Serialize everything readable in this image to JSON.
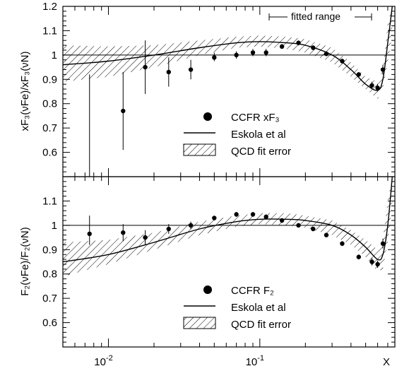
{
  "chart_data": [
    {
      "type": "scatter",
      "panel": "top",
      "ylabel": "xF₃(νFe)/xF₃(νN)",
      "xscale": "log",
      "xlim": [
        0.005,
        0.78
      ],
      "ylim": [
        0.5,
        1.2
      ],
      "yticks": [
        "0.6",
        "0.7",
        "0.8",
        "0.9",
        "1",
        "1.1",
        "1.2"
      ],
      "reference_line": 1,
      "fitted_range_label": "fitted range",
      "points": [
        {
          "x": 0.0075,
          "y": 0.48,
          "elo": 0.4,
          "ehi": 0.92
        },
        {
          "x": 0.0125,
          "y": 0.77,
          "elo": 0.61,
          "ehi": 0.93
        },
        {
          "x": 0.0175,
          "y": 0.95,
          "elo": 0.84,
          "ehi": 1.06
        },
        {
          "x": 0.025,
          "y": 0.93,
          "elo": 0.87,
          "ehi": 0.99
        },
        {
          "x": 0.035,
          "y": 0.94,
          "elo": 0.9,
          "ehi": 0.98
        },
        {
          "x": 0.05,
          "y": 0.99,
          "elo": 0.975,
          "ehi": 1.01
        },
        {
          "x": 0.07,
          "y": 1.0,
          "elo": 0.985,
          "ehi": 1.015
        },
        {
          "x": 0.09,
          "y": 1.01,
          "elo": 0.995,
          "ehi": 1.025
        },
        {
          "x": 0.11,
          "y": 1.01,
          "elo": 0.995,
          "ehi": 1.025
        },
        {
          "x": 0.14,
          "y": 1.035,
          "elo": 1.025,
          "ehi": 1.045
        },
        {
          "x": 0.18,
          "y": 1.05,
          "elo": 1.04,
          "ehi": 1.06
        },
        {
          "x": 0.225,
          "y": 1.03,
          "elo": 1.02,
          "ehi": 1.04
        },
        {
          "x": 0.275,
          "y": 1.005,
          "elo": 0.995,
          "ehi": 1.015
        },
        {
          "x": 0.35,
          "y": 0.975,
          "elo": 0.965,
          "ehi": 0.985
        },
        {
          "x": 0.45,
          "y": 0.92,
          "elo": 0.91,
          "ehi": 0.93
        },
        {
          "x": 0.55,
          "y": 0.875,
          "elo": 0.86,
          "ehi": 0.89
        },
        {
          "x": 0.6,
          "y": 0.865,
          "elo": 0.85,
          "ehi": 0.88
        },
        {
          "x": 0.65,
          "y": 0.94,
          "elo": 0.92,
          "ehi": 0.96
        }
      ],
      "curve": {
        "x": [
          0.005,
          0.01,
          0.02,
          0.04,
          0.07,
          0.1,
          0.15,
          0.2,
          0.3,
          0.4,
          0.5,
          0.6,
          0.65,
          0.7,
          0.75
        ],
        "y": [
          0.96,
          0.975,
          1.0,
          1.03,
          1.05,
          1.055,
          1.05,
          1.04,
          1.0,
          0.94,
          0.88,
          0.855,
          0.9,
          1.05,
          1.2
        ]
      },
      "band": {
        "x": [
          0.005,
          0.01,
          0.02,
          0.04,
          0.07,
          0.1,
          0.15,
          0.2,
          0.3,
          0.4,
          0.5,
          0.6,
          0.65,
          0.7,
          0.75
        ],
        "lo": [
          0.89,
          0.91,
          0.95,
          1.0,
          1.03,
          1.035,
          1.025,
          1.01,
          0.97,
          0.91,
          0.86,
          0.82,
          0.86,
          0.97,
          1.08
        ],
        "hi": [
          1.04,
          1.035,
          1.04,
          1.06,
          1.075,
          1.08,
          1.075,
          1.065,
          1.03,
          0.97,
          0.91,
          0.89,
          0.94,
          1.13,
          1.2
        ]
      },
      "legend": {
        "placement": "bottom-right",
        "items": [
          "CCFR  xF₃",
          "Eskola et al",
          "QCD fit error"
        ]
      }
    },
    {
      "type": "scatter",
      "panel": "bottom",
      "ylabel": "F₂(νFe)/F₂(νN)",
      "xlabel": "X",
      "xscale": "log",
      "xlim": [
        0.005,
        0.78
      ],
      "ylim": [
        0.5,
        1.2
      ],
      "yticks": [
        "0.6",
        "0.7",
        "0.8",
        "0.9",
        "1",
        "1.1"
      ],
      "xticks": [
        {
          "value": 0.01,
          "base": "10",
          "exp": "-2"
        },
        {
          "value": 0.1,
          "base": "10",
          "exp": "-1"
        }
      ],
      "reference_line": 1,
      "points": [
        {
          "x": 0.0075,
          "y": 0.965,
          "elo": 0.92,
          "ehi": 1.04
        },
        {
          "x": 0.0125,
          "y": 0.97,
          "elo": 0.935,
          "ehi": 1.005
        },
        {
          "x": 0.0175,
          "y": 0.95,
          "elo": 0.92,
          "ehi": 0.98
        },
        {
          "x": 0.025,
          "y": 0.985,
          "elo": 0.965,
          "ehi": 1.005
        },
        {
          "x": 0.035,
          "y": 1.0,
          "elo": 0.985,
          "ehi": 1.015
        },
        {
          "x": 0.05,
          "y": 1.03,
          "elo": 1.02,
          "ehi": 1.04
        },
        {
          "x": 0.07,
          "y": 1.045,
          "elo": 1.035,
          "ehi": 1.055
        },
        {
          "x": 0.09,
          "y": 1.045,
          "elo": 1.035,
          "ehi": 1.055
        },
        {
          "x": 0.11,
          "y": 1.035,
          "elo": 1.025,
          "ehi": 1.045
        },
        {
          "x": 0.14,
          "y": 1.02,
          "elo": 1.01,
          "ehi": 1.03
        },
        {
          "x": 0.18,
          "y": 1.0,
          "elo": 0.992,
          "ehi": 1.008
        },
        {
          "x": 0.225,
          "y": 0.985,
          "elo": 0.977,
          "ehi": 0.993
        },
        {
          "x": 0.275,
          "y": 0.96,
          "elo": 0.952,
          "ehi": 0.968
        },
        {
          "x": 0.35,
          "y": 0.925,
          "elo": 0.915,
          "ehi": 0.935
        },
        {
          "x": 0.45,
          "y": 0.87,
          "elo": 0.86,
          "ehi": 0.88
        },
        {
          "x": 0.55,
          "y": 0.85,
          "elo": 0.835,
          "ehi": 0.865
        },
        {
          "x": 0.6,
          "y": 0.84,
          "elo": 0.825,
          "ehi": 0.855
        },
        {
          "x": 0.65,
          "y": 0.925,
          "elo": 0.905,
          "ehi": 0.945
        }
      ],
      "curve": {
        "x": [
          0.005,
          0.01,
          0.02,
          0.04,
          0.07,
          0.1,
          0.15,
          0.2,
          0.3,
          0.4,
          0.5,
          0.6,
          0.65,
          0.7,
          0.75
        ],
        "y": [
          0.85,
          0.88,
          0.93,
          0.985,
          1.015,
          1.025,
          1.025,
          1.02,
          1.0,
          0.96,
          0.91,
          0.86,
          0.88,
          1.0,
          1.2
        ]
      },
      "band": {
        "x": [
          0.005,
          0.01,
          0.02,
          0.04,
          0.07,
          0.1,
          0.15,
          0.2,
          0.3,
          0.4,
          0.5,
          0.6,
          0.65,
          0.7,
          0.75
        ],
        "lo": [
          0.79,
          0.84,
          0.9,
          0.96,
          0.995,
          1.005,
          1.0,
          0.99,
          0.96,
          0.92,
          0.87,
          0.81,
          0.82,
          0.93,
          1.08
        ],
        "hi": [
          0.93,
          0.94,
          0.97,
          1.015,
          1.04,
          1.05,
          1.05,
          1.04,
          1.02,
          0.98,
          0.94,
          0.9,
          0.94,
          1.1,
          1.2
        ]
      },
      "legend": {
        "placement": "bottom-right",
        "items": [
          "CCFR  F₂",
          "Eskola et al",
          "QCD fit error"
        ]
      }
    }
  ]
}
